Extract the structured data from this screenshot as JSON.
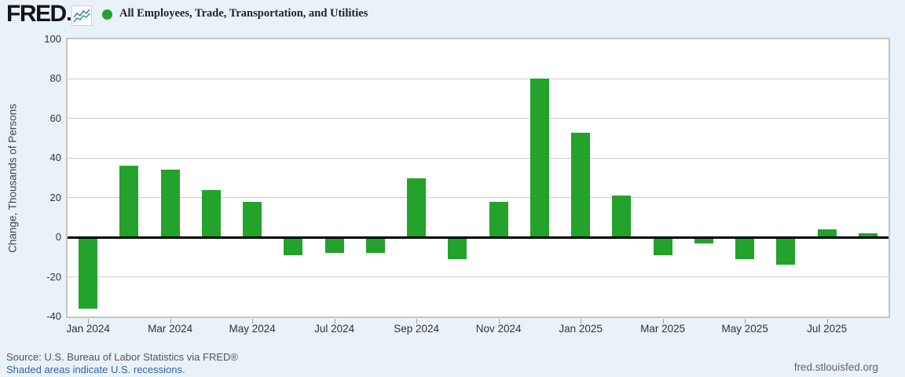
{
  "header": {
    "logo_text": "FRED",
    "legend_label": "All Employees, Trade, Transportation, and Utilities",
    "legend_dot_color": "#23a22c"
  },
  "chart_data": {
    "type": "bar",
    "title": "All Employees, Trade, Transportation, and Utilities",
    "categories": [
      "Jan 2024",
      "Feb 2024",
      "Mar 2024",
      "Apr 2024",
      "May 2024",
      "Jun 2024",
      "Jul 2024",
      "Aug 2024",
      "Sep 2024",
      "Oct 2024",
      "Nov 2024",
      "Dec 2024",
      "Jan 2025",
      "Feb 2025",
      "Mar 2025",
      "Apr 2025",
      "May 2025",
      "Jun 2025",
      "Jul 2025",
      "Aug 2025"
    ],
    "values": [
      -36,
      36,
      34,
      24,
      18,
      -9,
      -8,
      -8,
      30,
      -11,
      18,
      80,
      53,
      21,
      -9,
      -3,
      -11,
      -14,
      4,
      2
    ],
    "ylabel": "Change, Thousands of Persons",
    "xlabel": "",
    "ylim": [
      -40,
      100
    ],
    "yticks": [
      100,
      80,
      60,
      40,
      20,
      0,
      -20,
      -40
    ],
    "xtick_labels": [
      "Jan 2024",
      "Mar 2024",
      "May 2024",
      "Jul 2024",
      "Sep 2024",
      "Nov 2024",
      "Jan 2025",
      "Mar 2025",
      "May 2025",
      "Jul 2025"
    ],
    "xtick_every": 2,
    "grid": true,
    "legend_position": "top-left",
    "bar_color": "#23a22c",
    "zero_line_color": "#000000",
    "gridline_color": "#cccccc"
  },
  "footer": {
    "source_line": "Source: U.S. Bureau of Labor Statistics via FRED®",
    "recession_note": "Shaded areas indicate U.S. recessions.",
    "site_link": "fred.stlouisfed.org"
  },
  "colors": {
    "page_background": "#e9f1f9",
    "plot_background": "#ffffff",
    "plot_border": "#c6c6c6",
    "axis_text": "#333333",
    "link_blue": "#3465a4",
    "source_gray": "#555555"
  }
}
